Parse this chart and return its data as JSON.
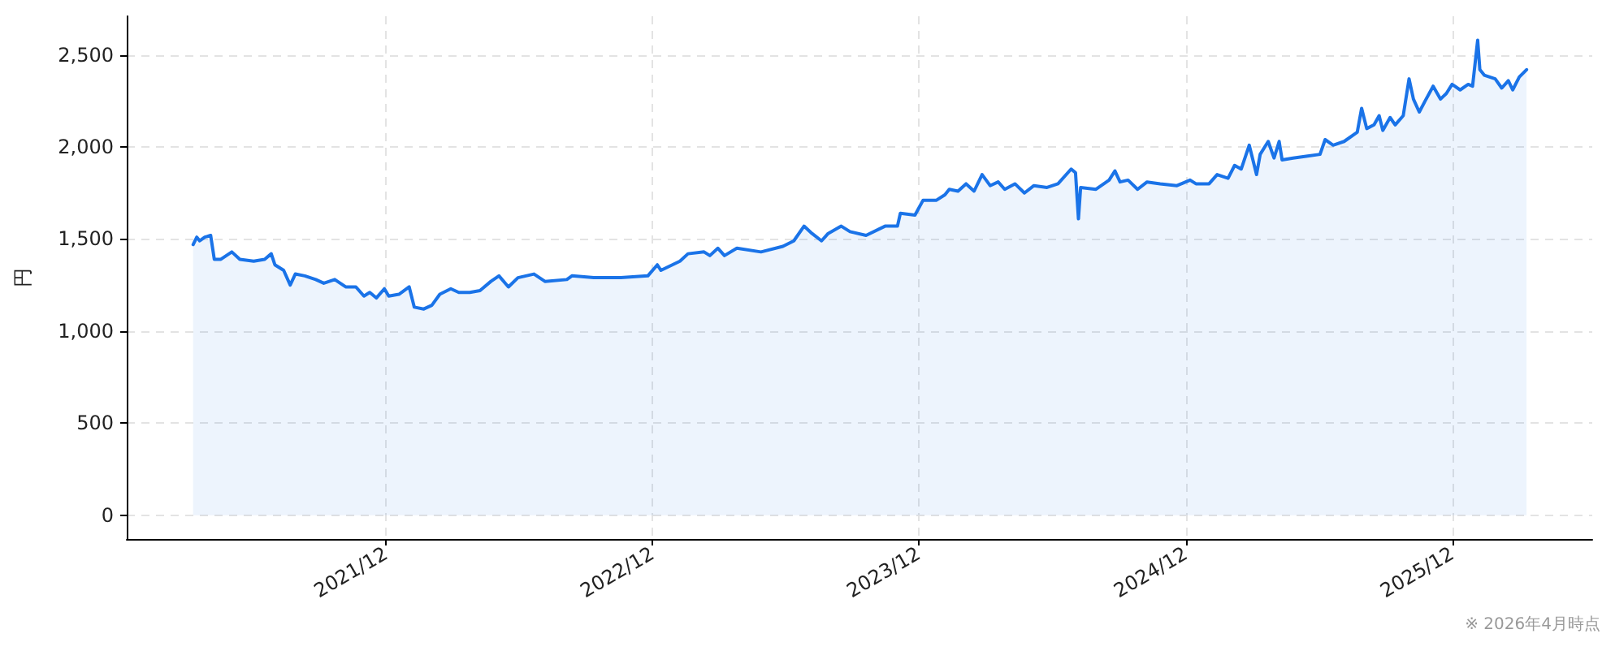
{
  "chart_data": {
    "type": "area",
    "ylabel": "円",
    "annotations": [
      "※ 2026年4月時点"
    ],
    "color": "#1a73e8",
    "grid": true,
    "marker": "none",
    "line_style": "solid",
    "xlim": [
      "2020-12-11",
      "2026-06-11"
    ],
    "xticks": [
      {
        "value": "2021-12-01",
        "label": "2021/12"
      },
      {
        "value": "2022-12-01",
        "label": "2022/12"
      },
      {
        "value": "2023-12-01",
        "label": "2023/12"
      },
      {
        "value": "2024-12-01",
        "label": "2024/12"
      },
      {
        "value": "2025-12-01",
        "label": "2025/12"
      }
    ],
    "ylim": [
      -129,
      2710
    ],
    "yticks": [
      0,
      500,
      {
        "value": 1000,
        "label": "1,000"
      },
      {
        "value": 1500,
        "label": "1,500"
      },
      {
        "value": 2000,
        "label": "2,000"
      },
      {
        "value": 2500,
        "label": "2,500"
      }
    ],
    "x": [
      "2021-03-12",
      "2021-03-17",
      "2021-03-21",
      "2021-03-28",
      "2021-04-05",
      "2021-04-10",
      "2021-04-19",
      "2021-05-04",
      "2021-05-15",
      "2021-06-03",
      "2021-06-18",
      "2021-06-27",
      "2021-07-02",
      "2021-07-14",
      "2021-07-23",
      "2021-07-30",
      "2021-08-12",
      "2021-08-27",
      "2021-09-07",
      "2021-09-22",
      "2021-10-07",
      "2021-10-21",
      "2021-11-01",
      "2021-11-09",
      "2021-11-18",
      "2021-11-29",
      "2021-12-05",
      "2021-12-19",
      "2022-01-02",
      "2022-01-09",
      "2022-01-22",
      "2022-02-02",
      "2022-02-13",
      "2022-02-28",
      "2022-03-11",
      "2022-03-26",
      "2022-04-09",
      "2022-04-24",
      "2022-05-05",
      "2022-05-18",
      "2022-05-31",
      "2022-06-22",
      "2022-07-07",
      "2022-08-06",
      "2022-08-13",
      "2022-09-12",
      "2022-10-19",
      "2022-11-25",
      "2022-12-08",
      "2022-12-13",
      "2023-01-08",
      "2023-01-19",
      "2023-02-10",
      "2023-02-18",
      "2023-03-01",
      "2023-03-10",
      "2023-03-27",
      "2023-04-29",
      "2023-05-29",
      "2023-06-13",
      "2023-06-27",
      "2023-07-08",
      "2023-07-21",
      "2023-07-30",
      "2023-08-17",
      "2023-08-29",
      "2023-09-20",
      "2023-10-16",
      "2023-11-02",
      "2023-11-06",
      "2023-11-26",
      "2023-12-07",
      "2023-12-25",
      "2024-01-06",
      "2024-01-12",
      "2024-01-24",
      "2024-02-04",
      "2024-02-15",
      "2024-02-26",
      "2024-03-08",
      "2024-03-19",
      "2024-03-28",
      "2024-04-11",
      "2024-04-24",
      "2024-05-07",
      "2024-05-25",
      "2024-06-09",
      "2024-06-27",
      "2024-07-03",
      "2024-07-07",
      "2024-07-10",
      "2024-07-31",
      "2024-08-18",
      "2024-08-26",
      "2024-09-02",
      "2024-09-13",
      "2024-09-26",
      "2024-10-09",
      "2024-10-27",
      "2024-11-19",
      "2024-12-07",
      "2024-12-15",
      "2025-01-02",
      "2025-01-13",
      "2025-01-28",
      "2025-02-06",
      "2025-02-15",
      "2025-02-26",
      "2025-03-08",
      "2025-03-13",
      "2025-03-24",
      "2025-04-01",
      "2025-04-08",
      "2025-04-12",
      "2025-04-27",
      "2025-05-15",
      "2025-06-03",
      "2025-06-10",
      "2025-06-21",
      "2025-07-06",
      "2025-07-24",
      "2025-07-30",
      "2025-08-06",
      "2025-08-16",
      "2025-08-23",
      "2025-08-28",
      "2025-09-07",
      "2025-09-14",
      "2025-09-25",
      "2025-10-03",
      "2025-10-09",
      "2025-10-17",
      "2025-10-25",
      "2025-11-05",
      "2025-11-15",
      "2025-11-23",
      "2025-12-01",
      "2025-12-12",
      "2025-12-23",
      "2025-12-29",
      "2026-01-05",
      "2026-01-08",
      "2026-01-14",
      "2026-01-29",
      "2026-02-07",
      "2026-02-16",
      "2026-02-22",
      "2026-03-03",
      "2026-03-13"
    ],
    "values": [
      1470,
      1510,
      1490,
      1510,
      1520,
      1390,
      1390,
      1430,
      1390,
      1380,
      1390,
      1420,
      1360,
      1330,
      1250,
      1310,
      1300,
      1280,
      1260,
      1280,
      1240,
      1240,
      1190,
      1210,
      1180,
      1230,
      1190,
      1200,
      1240,
      1130,
      1120,
      1140,
      1200,
      1230,
      1210,
      1210,
      1220,
      1270,
      1300,
      1240,
      1290,
      1310,
      1270,
      1280,
      1300,
      1290,
      1290,
      1300,
      1360,
      1330,
      1380,
      1420,
      1430,
      1410,
      1450,
      1410,
      1450,
      1430,
      1460,
      1490,
      1570,
      1530,
      1490,
      1530,
      1570,
      1540,
      1520,
      1570,
      1570,
      1640,
      1630,
      1710,
      1710,
      1740,
      1770,
      1760,
      1800,
      1760,
      1850,
      1790,
      1810,
      1770,
      1800,
      1750,
      1790,
      1780,
      1800,
      1880,
      1860,
      1610,
      1780,
      1770,
      1820,
      1870,
      1810,
      1820,
      1770,
      1810,
      1800,
      1790,
      1820,
      1800,
      1800,
      1850,
      1830,
      1900,
      1880,
      2010,
      1850,
      1960,
      2030,
      1940,
      2030,
      1930,
      1940,
      1950,
      1960,
      2040,
      2010,
      2030,
      2080,
      2210,
      2100,
      2120,
      2170,
      2090,
      2160,
      2120,
      2170,
      2370,
      2260,
      2190,
      2250,
      2330,
      2260,
      2290,
      2340,
      2310,
      2340,
      2330,
      2580,
      2420,
      2390,
      2370,
      2320,
      2360,
      2310,
      2380,
      2420
    ]
  }
}
